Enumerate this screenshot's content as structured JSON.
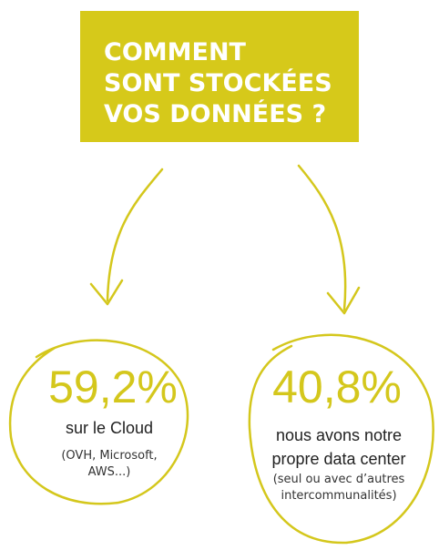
{
  "title": [
    "COMMENT",
    "SONT STOCKÉES",
    "VOS DONNÉES ?"
  ],
  "items": [
    {
      "value": "59,2%",
      "label": [
        "sur le Cloud"
      ],
      "note": [
        "(OVH, Microsoft,",
        "AWS...)"
      ]
    },
    {
      "value": "40,8%",
      "label": [
        "nous avons notre",
        "propre data center"
      ],
      "note": [
        "(seul ou avec d’autres",
        "intercommunalités)"
      ]
    }
  ]
}
